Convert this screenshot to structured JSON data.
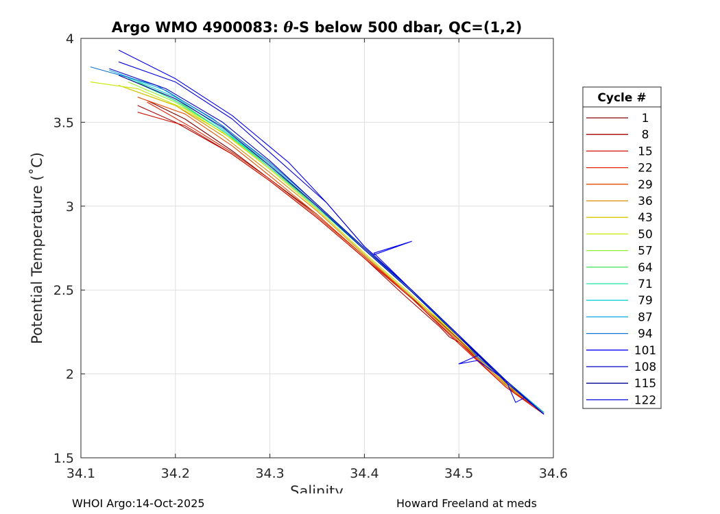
{
  "chart_data": {
    "type": "line",
    "title_prefix": "Argo WMO 4900083: ",
    "title_theta": "θ",
    "title_suffix": "-S below 500 dbar,  QC=(1,2)",
    "xlabel": "Salinity",
    "ylabel": "Potential Temperature (˚C)",
    "xlim": [
      34.1,
      34.6
    ],
    "ylim": [
      1.5,
      4.0
    ],
    "x_ticks": [
      34.1,
      34.2,
      34.3,
      34.4,
      34.5,
      34.6
    ],
    "x_tick_labels": [
      "34.1",
      "34.2",
      "34.3",
      "34.4",
      "34.5",
      "34.6"
    ],
    "y_ticks": [
      1.5,
      2.0,
      2.5,
      3.0,
      3.5,
      4.0
    ],
    "y_tick_labels": [
      "1.5",
      "2",
      "2.5",
      "3",
      "3.5",
      "4"
    ],
    "grid": true,
    "legend_title": "Cycle #",
    "legend_position": "outside-right",
    "legend": [
      {
        "label": "1",
        "color": "#800000"
      },
      {
        "label": "8",
        "color": "#a50000"
      },
      {
        "label": "15",
        "color": "#cc1100"
      },
      {
        "label": "22",
        "color": "#e02000"
      },
      {
        "label": "29",
        "color": "#e84a00"
      },
      {
        "label": "36",
        "color": "#d88a00"
      },
      {
        "label": "43",
        "color": "#d6c600"
      },
      {
        "label": "50",
        "color": "#c8e800"
      },
      {
        "label": "57",
        "color": "#8ef030"
      },
      {
        "label": "64",
        "color": "#4ce860"
      },
      {
        "label": "71",
        "color": "#20e0a0"
      },
      {
        "label": "79",
        "color": "#10d0d8"
      },
      {
        "label": "87",
        "color": "#10a8e0"
      },
      {
        "label": "94",
        "color": "#1070d0"
      },
      {
        "label": "101",
        "color": "#0000f0"
      },
      {
        "label": "108",
        "color": "#0000c0"
      },
      {
        "label": "115",
        "color": "#000090"
      },
      {
        "label": "122",
        "color": "#0000d8"
      }
    ],
    "profiles": [
      {
        "name": "1",
        "color": "#800000",
        "points": [
          [
            34.17,
            3.63
          ],
          [
            34.21,
            3.52
          ],
          [
            34.26,
            3.33
          ],
          [
            34.3,
            3.16
          ],
          [
            34.35,
            2.95
          ],
          [
            34.4,
            2.7
          ],
          [
            34.44,
            2.5
          ],
          [
            34.48,
            2.31
          ],
          [
            34.52,
            2.1
          ],
          [
            34.56,
            1.89
          ],
          [
            34.59,
            1.77
          ]
        ]
      },
      {
        "name": "8",
        "color": "#a50000",
        "points": [
          [
            34.16,
            3.6
          ],
          [
            34.2,
            3.5
          ],
          [
            34.26,
            3.31
          ],
          [
            34.3,
            3.15
          ],
          [
            34.35,
            2.93
          ],
          [
            34.4,
            2.69
          ],
          [
            34.44,
            2.48
          ],
          [
            34.48,
            2.28
          ],
          [
            34.49,
            2.22
          ],
          [
            34.5,
            2.19
          ],
          [
            34.52,
            2.09
          ],
          [
            34.56,
            1.88
          ],
          [
            34.59,
            1.76
          ]
        ]
      },
      {
        "name": "15",
        "color": "#cc1100",
        "points": [
          [
            34.16,
            3.56
          ],
          [
            34.21,
            3.48
          ],
          [
            34.26,
            3.31
          ],
          [
            34.3,
            3.15
          ],
          [
            34.35,
            2.93
          ],
          [
            34.4,
            2.69
          ],
          [
            34.45,
            2.45
          ],
          [
            34.5,
            2.18
          ],
          [
            34.55,
            1.92
          ],
          [
            34.59,
            1.77
          ]
        ]
      },
      {
        "name": "22",
        "color": "#e02000",
        "points": [
          [
            34.17,
            3.62
          ],
          [
            34.22,
            3.46
          ],
          [
            34.26,
            3.32
          ],
          [
            34.3,
            3.16
          ],
          [
            34.35,
            2.94
          ],
          [
            34.4,
            2.7
          ],
          [
            34.45,
            2.45
          ],
          [
            34.5,
            2.19
          ],
          [
            34.55,
            1.92
          ],
          [
            34.59,
            1.76
          ]
        ]
      },
      {
        "name": "29",
        "color": "#e84a00",
        "points": [
          [
            34.16,
            3.65
          ],
          [
            34.21,
            3.55
          ],
          [
            34.26,
            3.36
          ],
          [
            34.3,
            3.18
          ],
          [
            34.35,
            2.95
          ],
          [
            34.4,
            2.7
          ],
          [
            34.45,
            2.46
          ],
          [
            34.5,
            2.2
          ],
          [
            34.55,
            1.93
          ],
          [
            34.59,
            1.77
          ]
        ]
      },
      {
        "name": "36",
        "color": "#d88a00",
        "points": [
          [
            34.15,
            3.7
          ],
          [
            34.2,
            3.6
          ],
          [
            34.25,
            3.42
          ],
          [
            34.3,
            3.2
          ],
          [
            34.35,
            2.97
          ],
          [
            34.4,
            2.71
          ],
          [
            34.45,
            2.46
          ],
          [
            34.5,
            2.2
          ],
          [
            34.55,
            1.93
          ],
          [
            34.59,
            1.77
          ]
        ]
      },
      {
        "name": "43",
        "color": "#d6c600",
        "points": [
          [
            34.14,
            3.72
          ],
          [
            34.2,
            3.6
          ],
          [
            34.25,
            3.44
          ],
          [
            34.3,
            3.22
          ],
          [
            34.35,
            2.98
          ],
          [
            34.4,
            2.72
          ],
          [
            34.45,
            2.47
          ],
          [
            34.5,
            2.21
          ],
          [
            34.55,
            1.94
          ],
          [
            34.59,
            1.77
          ]
        ]
      },
      {
        "name": "50",
        "color": "#c8e800",
        "points": [
          [
            34.11,
            3.74
          ],
          [
            34.16,
            3.7
          ],
          [
            34.21,
            3.58
          ],
          [
            34.26,
            3.4
          ],
          [
            34.3,
            3.22
          ],
          [
            34.35,
            2.98
          ],
          [
            34.4,
            2.72
          ],
          [
            34.45,
            2.47
          ],
          [
            34.5,
            2.22
          ],
          [
            34.55,
            1.95
          ],
          [
            34.59,
            1.77
          ]
        ]
      },
      {
        "name": "57",
        "color": "#8ef030",
        "points": [
          [
            34.15,
            3.74
          ],
          [
            34.2,
            3.62
          ],
          [
            34.25,
            3.45
          ],
          [
            34.3,
            3.24
          ],
          [
            34.35,
            2.99
          ],
          [
            34.4,
            2.74
          ],
          [
            34.45,
            2.49
          ],
          [
            34.5,
            2.23
          ],
          [
            34.55,
            1.96
          ],
          [
            34.59,
            1.77
          ]
        ]
      },
      {
        "name": "64",
        "color": "#4ce860",
        "points": [
          [
            34.16,
            3.74
          ],
          [
            34.21,
            3.6
          ],
          [
            34.26,
            3.41
          ],
          [
            34.3,
            3.23
          ],
          [
            34.35,
            2.99
          ],
          [
            34.4,
            2.74
          ],
          [
            34.45,
            2.49
          ],
          [
            34.5,
            2.23
          ],
          [
            34.55,
            1.96
          ],
          [
            34.59,
            1.77
          ]
        ]
      },
      {
        "name": "71",
        "color": "#20e0a0",
        "points": [
          [
            34.15,
            3.76
          ],
          [
            34.2,
            3.63
          ],
          [
            34.25,
            3.45
          ],
          [
            34.3,
            3.23
          ],
          [
            34.35,
            2.99
          ],
          [
            34.4,
            2.74
          ],
          [
            34.45,
            2.49
          ],
          [
            34.5,
            2.23
          ],
          [
            34.55,
            1.96
          ],
          [
            34.59,
            1.77
          ]
        ]
      },
      {
        "name": "79",
        "color": "#10d0d8",
        "points": [
          [
            34.14,
            3.79
          ],
          [
            34.2,
            3.65
          ],
          [
            34.25,
            3.46
          ],
          [
            34.3,
            3.24
          ],
          [
            34.35,
            3.0
          ],
          [
            34.4,
            2.74
          ],
          [
            34.45,
            2.49
          ],
          [
            34.5,
            2.23
          ],
          [
            34.55,
            1.96
          ],
          [
            34.59,
            1.77
          ]
        ]
      },
      {
        "name": "87",
        "color": "#10a8e0",
        "points": [
          [
            34.13,
            3.81
          ],
          [
            34.19,
            3.69
          ],
          [
            34.25,
            3.48
          ],
          [
            34.3,
            3.25
          ],
          [
            34.35,
            3.0
          ],
          [
            34.4,
            2.75
          ],
          [
            34.45,
            2.49
          ],
          [
            34.5,
            2.23
          ],
          [
            34.55,
            1.96
          ],
          [
            34.59,
            1.77
          ]
        ]
      },
      {
        "name": "94",
        "color": "#1070d0",
        "points": [
          [
            34.11,
            3.83
          ],
          [
            34.18,
            3.72
          ],
          [
            34.24,
            3.52
          ],
          [
            34.3,
            3.26
          ],
          [
            34.35,
            3.01
          ],
          [
            34.4,
            2.75
          ],
          [
            34.45,
            2.5
          ],
          [
            34.5,
            2.23
          ],
          [
            34.52,
            2.1
          ],
          [
            34.55,
            1.96
          ],
          [
            34.59,
            1.76
          ]
        ]
      },
      {
        "name": "101",
        "color": "#0000f0",
        "points": [
          [
            34.14,
            3.93
          ],
          [
            34.2,
            3.76
          ],
          [
            34.26,
            3.54
          ],
          [
            34.32,
            3.26
          ],
          [
            34.36,
            3.02
          ],
          [
            34.38,
            2.89
          ],
          [
            34.4,
            2.76
          ],
          [
            34.41,
            2.71
          ],
          [
            34.45,
            2.79
          ],
          [
            34.41,
            2.72
          ],
          [
            34.45,
            2.5
          ],
          [
            34.5,
            2.23
          ],
          [
            34.52,
            2.11
          ],
          [
            34.5,
            2.06
          ],
          [
            34.52,
            2.08
          ],
          [
            34.55,
            1.96
          ],
          [
            34.56,
            1.83
          ],
          [
            34.57,
            1.86
          ],
          [
            34.59,
            1.76
          ]
        ]
      },
      {
        "name": "108",
        "color": "#0000c0",
        "points": [
          [
            34.13,
            3.82
          ],
          [
            34.19,
            3.7
          ],
          [
            34.25,
            3.5
          ],
          [
            34.3,
            3.27
          ],
          [
            34.35,
            3.01
          ],
          [
            34.4,
            2.75
          ],
          [
            34.45,
            2.5
          ],
          [
            34.5,
            2.23
          ],
          [
            34.55,
            1.96
          ],
          [
            34.59,
            1.76
          ]
        ]
      },
      {
        "name": "115",
        "color": "#000090",
        "points": [
          [
            34.14,
            3.78
          ],
          [
            34.2,
            3.64
          ],
          [
            34.25,
            3.47
          ],
          [
            34.3,
            3.24
          ],
          [
            34.35,
            3.0
          ],
          [
            34.4,
            2.74
          ],
          [
            34.45,
            2.49
          ],
          [
            34.5,
            2.22
          ],
          [
            34.55,
            1.95
          ],
          [
            34.59,
            1.76
          ]
        ]
      },
      {
        "name": "122",
        "color": "#0000d8",
        "points": [
          [
            34.14,
            3.86
          ],
          [
            34.2,
            3.74
          ],
          [
            34.26,
            3.52
          ],
          [
            34.31,
            3.27
          ],
          [
            34.36,
            3.02
          ],
          [
            34.4,
            2.76
          ],
          [
            34.45,
            2.5
          ],
          [
            34.5,
            2.23
          ],
          [
            34.55,
            1.95
          ],
          [
            34.59,
            1.76
          ]
        ]
      }
    ]
  },
  "footer": {
    "left": "WHOI Argo:14-Oct-2025",
    "right": "Howard Freeland at meds"
  }
}
